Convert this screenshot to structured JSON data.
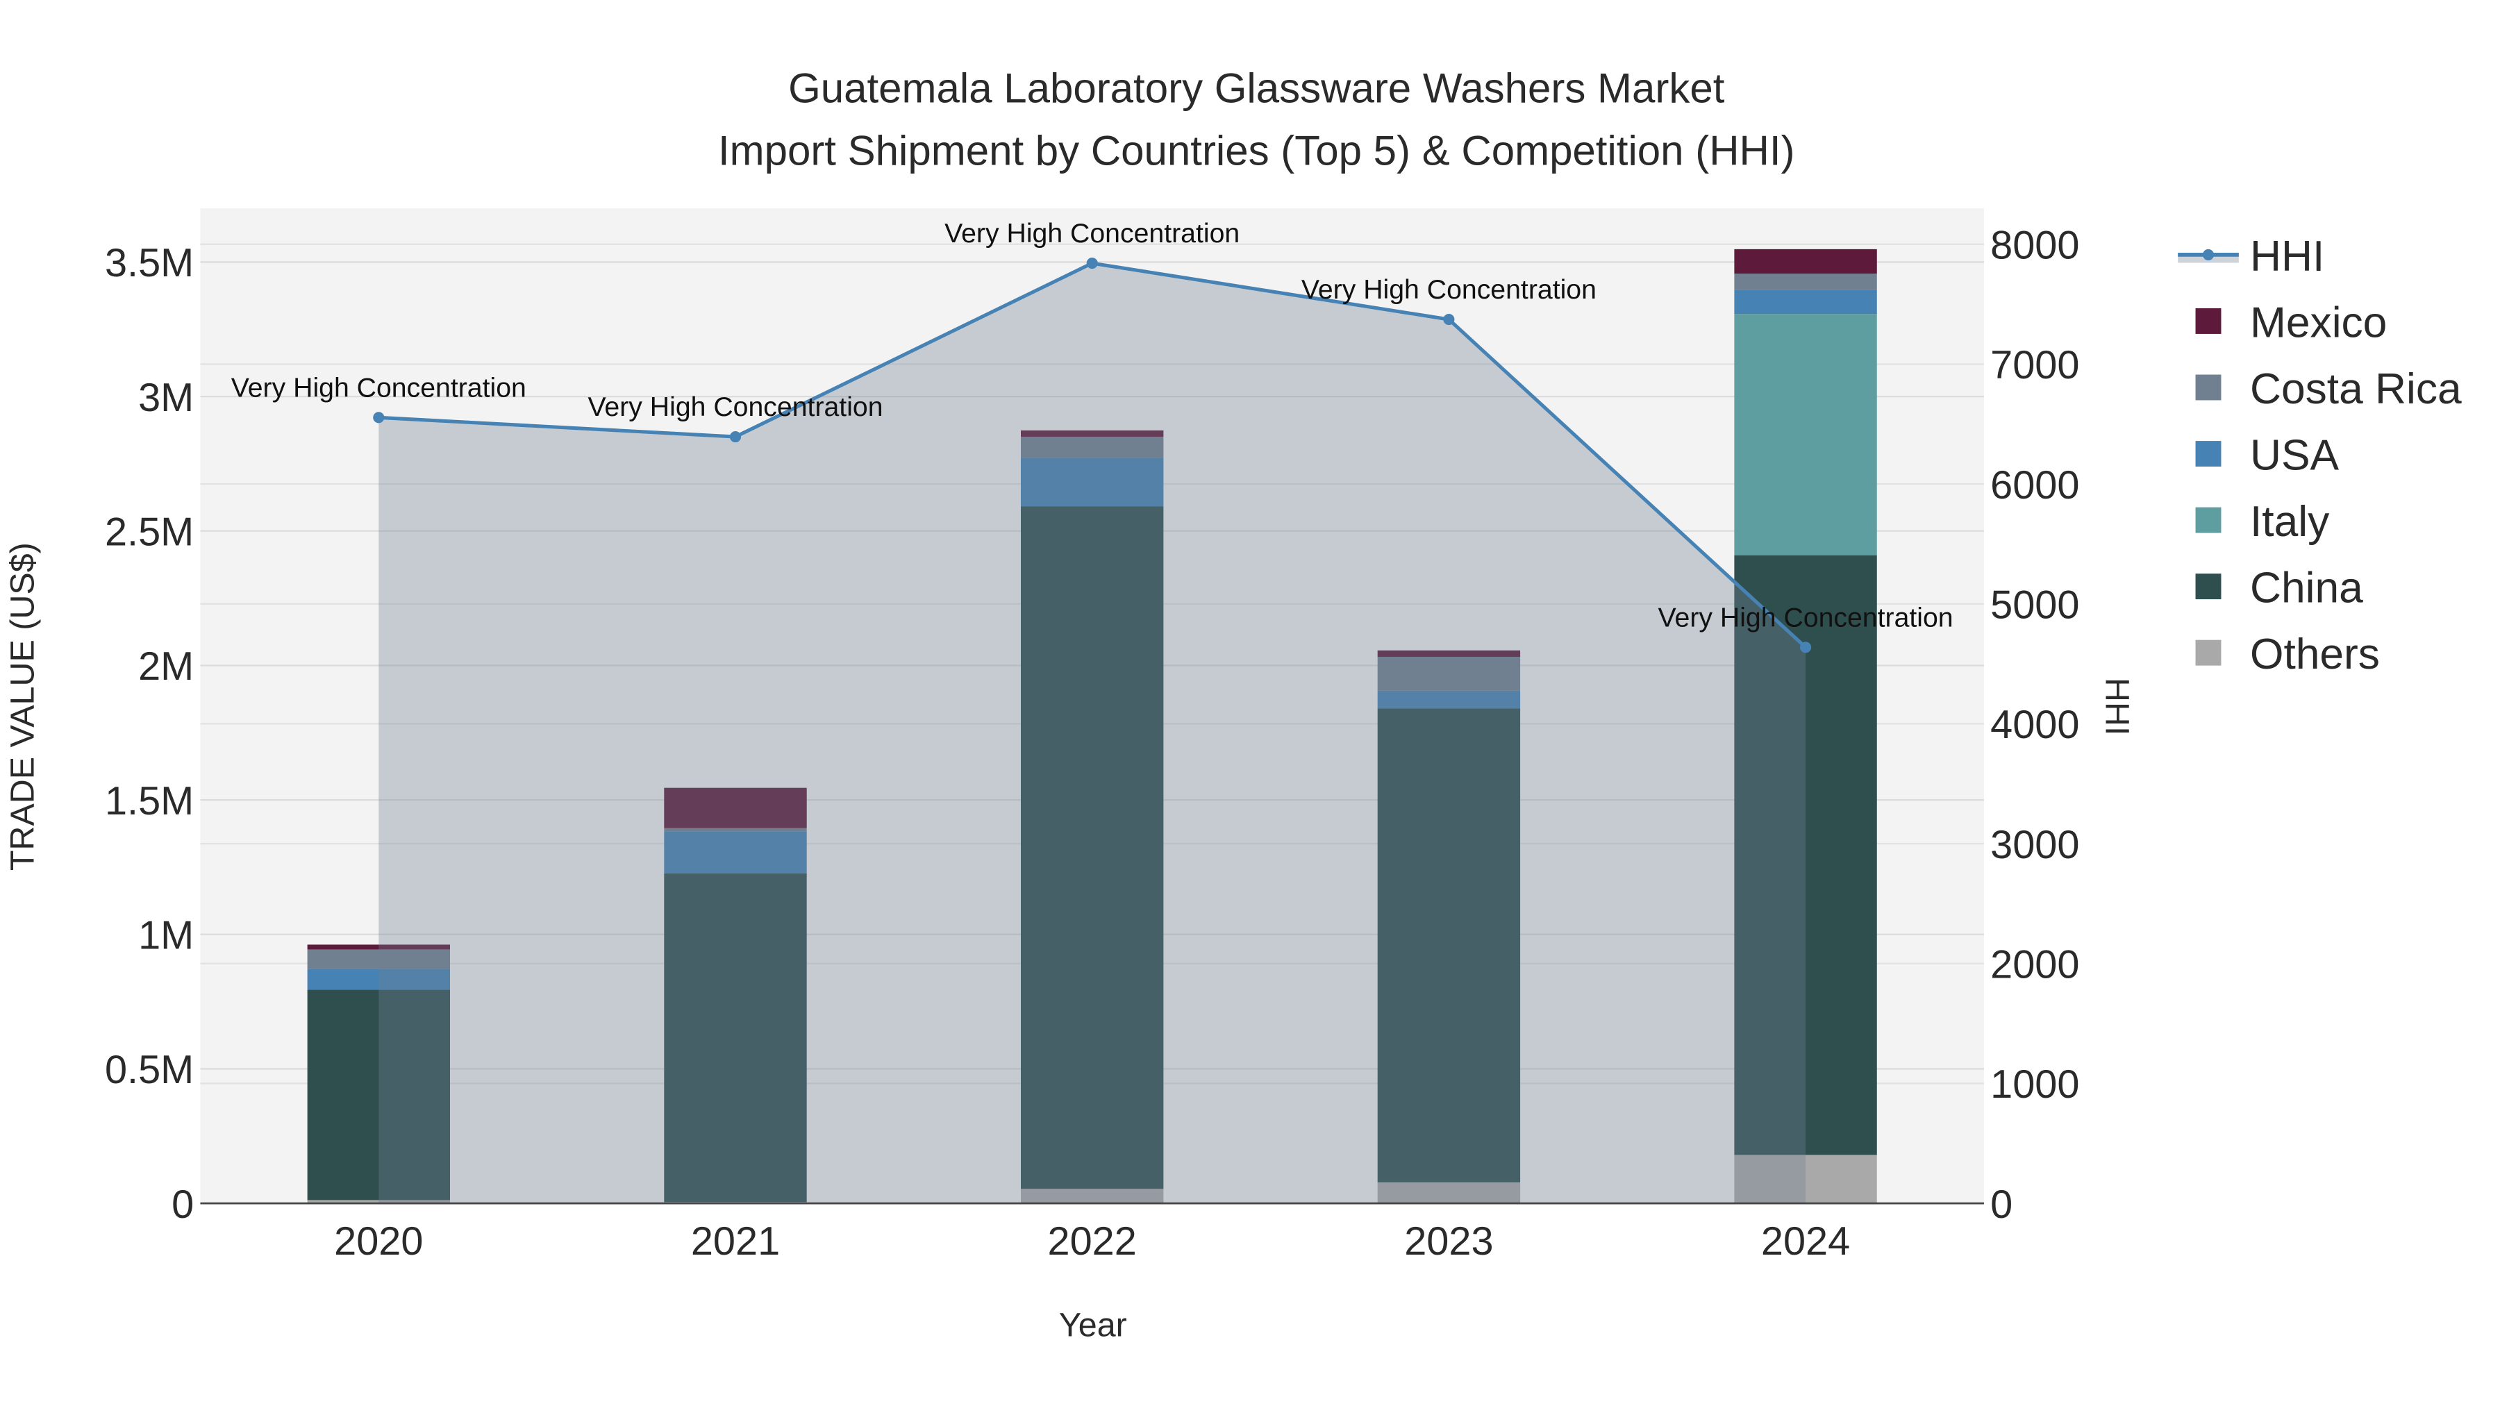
{
  "chart_data": {
    "type": "bar",
    "title": "Guatemala Laboratory Glassware Washers Market",
    "subtitle": "Import Shipment by Countries (Top 5) & Competition (HHI)",
    "xlabel": "Year",
    "ylabel": "TRADE VALUE (US$)",
    "y2label": "HHI",
    "ylim": [
      0,
      3700000
    ],
    "y2lim": [
      0,
      8300
    ],
    "yticks": [
      0,
      500000,
      1000000,
      1500000,
      2000000,
      2500000,
      3000000,
      3500000
    ],
    "ytick_labels": [
      "0",
      "0.5M",
      "1M",
      "1.5M",
      "2M",
      "2.5M",
      "3M",
      "3.5M"
    ],
    "y2ticks": [
      0,
      1000,
      2000,
      3000,
      4000,
      5000,
      6000,
      7000,
      8000
    ],
    "y2tick_labels": [
      "0",
      "1000",
      "2000",
      "3000",
      "4000",
      "5000",
      "6000",
      "7000",
      "8000"
    ],
    "categories": [
      "2020",
      "2021",
      "2022",
      "2023",
      "2024"
    ],
    "stacked": true,
    "series": [
      {
        "name": "Others",
        "color": "#a9a9a9",
        "values": [
          12000,
          5000,
          54000,
          78000,
          180000
        ]
      },
      {
        "name": "China",
        "color": "#2f4f4f",
        "values": [
          782000,
          1222000,
          2538000,
          1762000,
          2230000
        ]
      },
      {
        "name": "Italy",
        "color": "#5f9ea0",
        "values": [
          0,
          0,
          0,
          0,
          897000
        ]
      },
      {
        "name": "USA",
        "color": "#4682b4",
        "values": [
          78000,
          156000,
          180000,
          66000,
          90000
        ]
      },
      {
        "name": "Costa Rica",
        "color": "#708090",
        "values": [
          72000,
          12000,
          78000,
          126000,
          60000
        ]
      },
      {
        "name": "Mexico",
        "color": "#5e1a3a",
        "values": [
          18000,
          150000,
          24000,
          24000,
          91000
        ]
      }
    ],
    "hhi": {
      "name": "HHI",
      "color": "#4682b4",
      "values": [
        6555,
        6394,
        7842,
        7373,
        4638
      ],
      "annotations": [
        "Very High Concentration",
        "Very High Concentration",
        "Very High Concentration",
        "Very High Concentration",
        "Very High Concentration"
      ]
    },
    "legend_order": [
      "HHI",
      "Mexico",
      "Costa Rica",
      "USA",
      "Italy",
      "China",
      "Others"
    ],
    "legend_placement": "right",
    "grid": true
  }
}
